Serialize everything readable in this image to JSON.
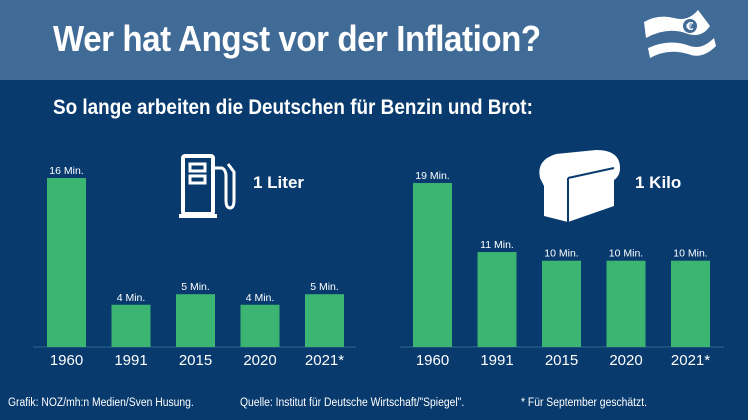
{
  "header": {
    "title": "Wer hat Angst vor der Inflation?",
    "icon": "euro-banknotes-icon"
  },
  "subtitle": "So lange arbeiten die Deutschen für Benzin und Brot:",
  "colors": {
    "header_bg": "#416b97",
    "body_bg": "#083a6d",
    "bar": "#3db572"
  },
  "chart_data": [
    {
      "type": "bar",
      "title": "1 Liter",
      "icon": "fuel-pump-icon",
      "categories": [
        "1960",
        "1991",
        "2015",
        "2020",
        "2021*"
      ],
      "values": [
        16,
        4,
        5,
        4,
        5
      ],
      "value_labels": [
        "16 Min.",
        "4 Min.",
        "5 Min.",
        "4 Min.",
        "5 Min."
      ],
      "unit": "Min."
    },
    {
      "type": "bar",
      "title": "1 Kilo",
      "icon": "bread-icon",
      "categories": [
        "1960",
        "1991",
        "2015",
        "2020",
        "2021*"
      ],
      "values": [
        19,
        11,
        10,
        10,
        10
      ],
      "value_labels": [
        "19 Min.",
        "11 Min.",
        "10 Min.",
        "10 Min.",
        "10 Min."
      ],
      "unit": "Min."
    }
  ],
  "footer": {
    "credit": "Grafik: NOZ/mh:n Medien/Sven Husung.",
    "source": "Quelle: Institut für Deutsche Wirtschaft/\"Spiegel\".",
    "note": "* Für September geschätzt."
  }
}
